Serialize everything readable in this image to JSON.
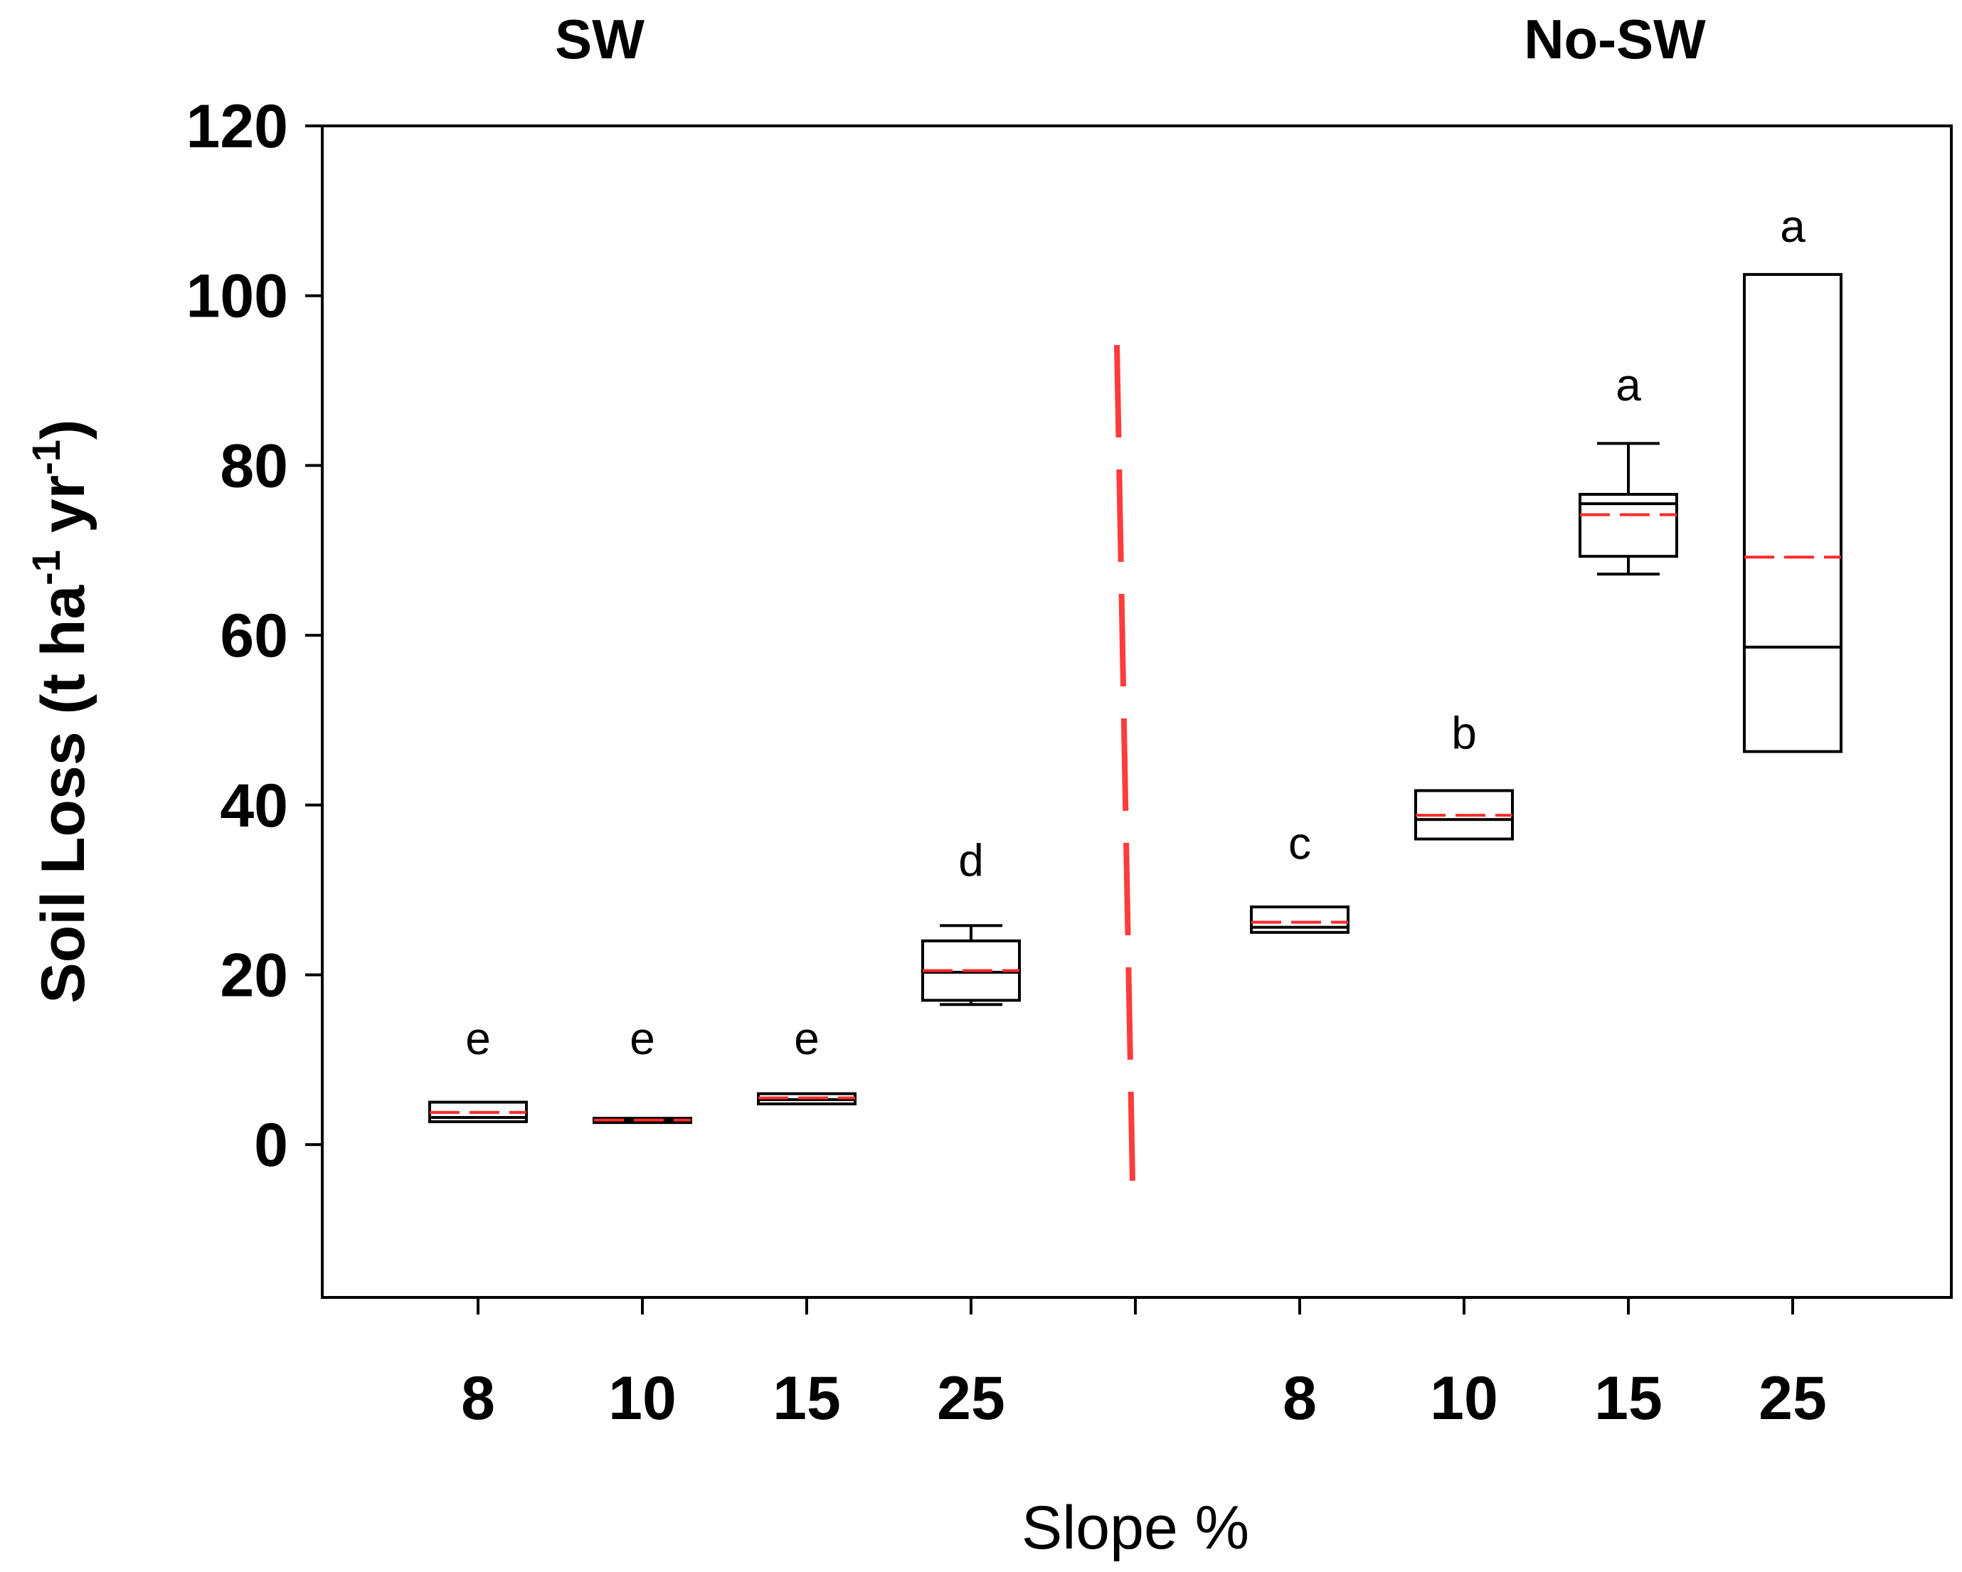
{
  "chart_data": {
    "type": "boxplot",
    "groups": [
      "SW",
      "No-SW"
    ],
    "xlabel": "Slope %",
    "ylabel": {
      "main": "Soil Loss (t ha",
      "sup1": "-1",
      "mid": " yr",
      "sup2": "-1",
      "end": ")"
    },
    "ylim": [
      -18,
      120
    ],
    "yticks": [
      0,
      20,
      40,
      60,
      80,
      100,
      120
    ],
    "separator": {
      "position": 4,
      "color": "#ff3b3b"
    },
    "boxes": [
      {
        "group": "SW",
        "slope": "8",
        "position": 0,
        "whisker_low": 2.7,
        "q1": 2.7,
        "median": 3.2,
        "mean": 3.8,
        "q3": 5.0,
        "whisker_high": 5.0,
        "letter": "e",
        "letter_y": 12.5
      },
      {
        "group": "SW",
        "slope": "10",
        "position": 1,
        "whisker_low": 2.6,
        "q1": 2.6,
        "median": 2.9,
        "mean": 2.9,
        "q3": 3.1,
        "whisker_high": 3.1,
        "letter": "e",
        "letter_y": 12.5
      },
      {
        "group": "SW",
        "slope": "15",
        "position": 2,
        "whisker_low": 4.8,
        "q1": 4.8,
        "median": 5.3,
        "mean": 5.5,
        "q3": 6.0,
        "whisker_high": 6.0,
        "letter": "e",
        "letter_y": 12.5
      },
      {
        "group": "SW",
        "slope": "25",
        "position": 3,
        "whisker_low": 16.5,
        "q1": 17.0,
        "median": 20.3,
        "mean": 20.5,
        "q3": 24.0,
        "whisker_high": 25.8,
        "letter": "d",
        "letter_y": 33.5
      },
      {
        "group": "No-SW",
        "slope": "8",
        "position": 5,
        "whisker_low": 25.0,
        "q1": 25.0,
        "median": 25.6,
        "mean": 26.2,
        "q3": 28.0,
        "whisker_high": 28.0,
        "letter": "c",
        "letter_y": 35.5
      },
      {
        "group": "No-SW",
        "slope": "10",
        "position": 6,
        "whisker_low": 36.0,
        "q1": 36.0,
        "median": 38.3,
        "mean": 38.8,
        "q3": 41.7,
        "whisker_high": 41.7,
        "letter": "b",
        "letter_y": 48.5
      },
      {
        "group": "No-SW",
        "slope": "15",
        "position": 7,
        "whisker_low": 67.2,
        "q1": 69.3,
        "median": 75.5,
        "mean": 74.2,
        "q3": 76.6,
        "whisker_high": 82.6,
        "letter": "a",
        "letter_y": 89.5
      },
      {
        "group": "No-SW",
        "slope": "25",
        "position": 8,
        "whisker_low": 46.3,
        "q1": 46.3,
        "median": 58.6,
        "mean": 69.2,
        "q3": 102.5,
        "whisker_high": 102.5,
        "letter": "a",
        "letter_y": 108.2
      }
    ],
    "colors": {
      "box": "#000000",
      "mean_line": "#ff2a2a"
    }
  }
}
